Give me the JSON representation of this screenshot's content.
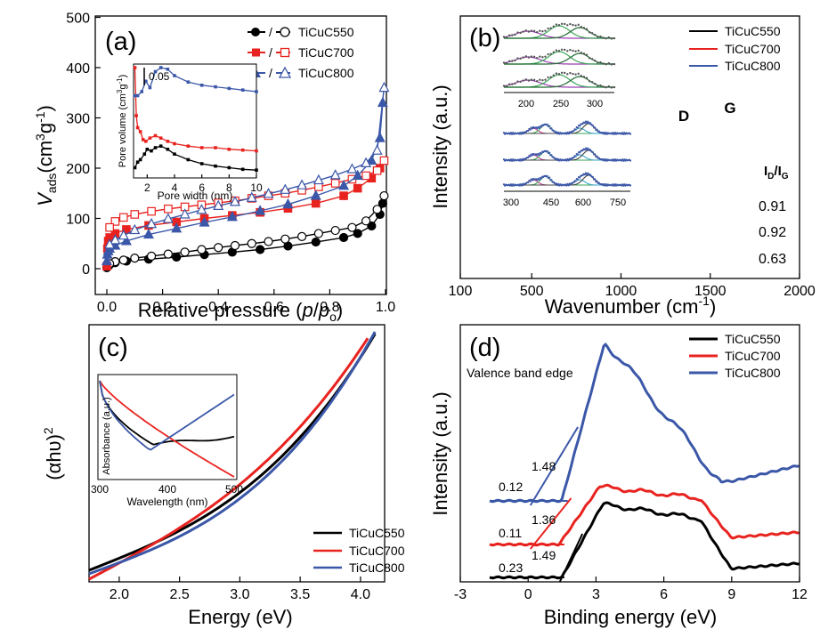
{
  "colors": {
    "s550": "#000000",
    "s700": "#e8231f",
    "s800": "#3b57a8",
    "inset": "#5a5a5a"
  },
  "chart_data": [
    {
      "panel": "(a)",
      "type": "scatter",
      "xlabel_prefix": "Relative pressure (",
      "xlabel_var": "p",
      "xlabel_slash": "/",
      "xlabel_var2": "p",
      "xlabel_sub": "o",
      "xlabel_suffix": ")",
      "ylabel_var": "V",
      "ylabel_sub": "ads",
      "ylabel_unit_a": "(cm",
      "ylabel_sup1": "3",
      "ylabel_unit_b": "g",
      "ylabel_sup2": "-1",
      "ylabel_unit_c": ")",
      "xlim": [
        -0.1,
        1.1
      ],
      "ylim": [
        -20,
        500
      ],
      "xticks": [
        "0.0",
        "0.2",
        "0.4",
        "0.6",
        "0.8",
        "1.0"
      ],
      "yticks": [
        "0",
        "100",
        "200",
        "300",
        "400",
        "500"
      ],
      "legend": [
        "TiCuC550",
        "TiCuC700",
        "TiCuC800"
      ],
      "legend_sep": "/",
      "series": [
        {
          "name": "TiCuC550",
          "color": "s550",
          "adsorption": [
            [
              0.0,
              2
            ],
            [
              0.005,
              5
            ],
            [
              0.01,
              8
            ],
            [
              0.03,
              12
            ],
            [
              0.07,
              15
            ],
            [
              0.15,
              19
            ],
            [
              0.25,
              23
            ],
            [
              0.35,
              28
            ],
            [
              0.45,
              33
            ],
            [
              0.55,
              38
            ],
            [
              0.65,
              45
            ],
            [
              0.75,
              53
            ],
            [
              0.85,
              62
            ],
            [
              0.9,
              70
            ],
            [
              0.95,
              85
            ],
            [
              0.98,
              108
            ],
            [
              0.99,
              130
            ]
          ],
          "desorption": [
            [
              0.995,
              145
            ],
            [
              0.97,
              118
            ],
            [
              0.93,
              95
            ],
            [
              0.88,
              82
            ],
            [
              0.82,
              76
            ],
            [
              0.76,
              70
            ],
            [
              0.7,
              64
            ],
            [
              0.64,
              59
            ],
            [
              0.58,
              54
            ],
            [
              0.52,
              50
            ],
            [
              0.46,
              46
            ],
            [
              0.4,
              42
            ],
            [
              0.34,
              38
            ],
            [
              0.28,
              33
            ],
            [
              0.22,
              29
            ],
            [
              0.16,
              25
            ],
            [
              0.1,
              21
            ],
            [
              0.06,
              17
            ],
            [
              0.03,
              14
            ],
            [
              0.01,
              10
            ]
          ]
        },
        {
          "name": "TiCuC700",
          "color": "s700",
          "adsorption": [
            [
              0.0,
              5
            ],
            [
              0.002,
              40
            ],
            [
              0.005,
              55
            ],
            [
              0.01,
              62
            ],
            [
              0.03,
              70
            ],
            [
              0.07,
              78
            ],
            [
              0.15,
              86
            ],
            [
              0.25,
              93
            ],
            [
              0.35,
              100
            ],
            [
              0.45,
              106
            ],
            [
              0.55,
              112
            ],
            [
              0.65,
              120
            ],
            [
              0.75,
              130
            ],
            [
              0.85,
              145
            ],
            [
              0.9,
              160
            ],
            [
              0.95,
              180
            ],
            [
              0.98,
              200
            ]
          ],
          "desorption": [
            [
              0.995,
              215
            ],
            [
              0.97,
              195
            ],
            [
              0.93,
              185
            ],
            [
              0.88,
              178
            ],
            [
              0.82,
              170
            ],
            [
              0.76,
              163
            ],
            [
              0.7,
              156
            ],
            [
              0.64,
              150
            ],
            [
              0.58,
              145
            ],
            [
              0.52,
              140
            ],
            [
              0.46,
              135
            ],
            [
              0.4,
              131
            ],
            [
              0.34,
              127
            ],
            [
              0.28,
              123
            ],
            [
              0.22,
              119
            ],
            [
              0.16,
              114
            ],
            [
              0.1,
              108
            ],
            [
              0.06,
              102
            ],
            [
              0.03,
              94
            ],
            [
              0.01,
              82
            ]
          ]
        },
        {
          "name": "TiCuC800",
          "color": "s800",
          "adsorption": [
            [
              0.0,
              15
            ],
            [
              0.002,
              28
            ],
            [
              0.005,
              35
            ],
            [
              0.01,
              40
            ],
            [
              0.03,
              46
            ],
            [
              0.07,
              55
            ],
            [
              0.15,
              68
            ],
            [
              0.25,
              80
            ],
            [
              0.35,
              92
            ],
            [
              0.45,
              103
            ],
            [
              0.55,
              115
            ],
            [
              0.65,
              128
            ],
            [
              0.75,
              145
            ],
            [
              0.85,
              165
            ],
            [
              0.9,
              185
            ],
            [
              0.95,
              215
            ],
            [
              0.98,
              260
            ],
            [
              0.99,
              330
            ]
          ],
          "desorption": [
            [
              0.995,
              360
            ],
            [
              0.97,
              235
            ],
            [
              0.93,
              210
            ],
            [
              0.88,
              198
            ],
            [
              0.82,
              186
            ],
            [
              0.76,
              176
            ],
            [
              0.7,
              166
            ],
            [
              0.64,
              157
            ],
            [
              0.58,
              149
            ],
            [
              0.52,
              141
            ],
            [
              0.46,
              133
            ],
            [
              0.4,
              125
            ],
            [
              0.34,
              117
            ],
            [
              0.28,
              108
            ],
            [
              0.22,
              99
            ],
            [
              0.16,
              89
            ],
            [
              0.1,
              77
            ],
            [
              0.06,
              66
            ],
            [
              0.03,
              57
            ],
            [
              0.01,
              48
            ]
          ]
        }
      ],
      "inset": {
        "xlabel": "Pore width (nm)",
        "ylabel": "Pore volume (cm",
        "ylabel_sup": "3",
        "ylabel_end": "g",
        "ylabel_sup2": "-1",
        "ylabel_close": ")",
        "scalebar_label": "0.05",
        "xlim": [
          1,
          10
        ],
        "xticks": [
          "2",
          "4",
          "6",
          "8",
          "10"
        ],
        "series": [
          {
            "name": "TiCuC550",
            "color": "s550",
            "points": [
              [
                1.1,
                0.005
              ],
              [
                1.3,
                0.012
              ],
              [
                1.5,
                0.015
              ],
              [
                1.8,
                0.022
              ],
              [
                2.0,
                0.028
              ],
              [
                2.3,
                0.026
              ],
              [
                2.6,
                0.03
              ],
              [
                3.0,
                0.032
              ],
              [
                3.5,
                0.028
              ],
              [
                4.0,
                0.022
              ],
              [
                5,
                0.015
              ],
              [
                6,
                0.01
              ],
              [
                7,
                0.007
              ],
              [
                8,
                0.005
              ],
              [
                9,
                0.003
              ],
              [
                10,
                0.002
              ]
            ]
          },
          {
            "name": "TiCuC700",
            "color": "s700",
            "points": [
              [
                1.1,
                0.13
              ],
              [
                1.2,
                0.07
              ],
              [
                1.3,
                0.055
              ],
              [
                1.5,
                0.05
              ],
              [
                1.7,
                0.04
              ],
              [
                1.9,
                0.038
              ],
              [
                2.2,
                0.042
              ],
              [
                2.6,
                0.045
              ],
              [
                3.0,
                0.042
              ],
              [
                3.5,
                0.038
              ],
              [
                4,
                0.035
              ],
              [
                5,
                0.032
              ],
              [
                6,
                0.03
              ],
              [
                7,
                0.03
              ],
              [
                8,
                0.028
              ],
              [
                9,
                0.027
              ],
              [
                10,
                0.026
              ]
            ]
          },
          {
            "name": "TiCuC800",
            "color": "s800",
            "points": [
              [
                1.1,
                0.095
              ],
              [
                1.3,
                0.095
              ],
              [
                1.6,
                0.1
              ],
              [
                1.9,
                0.113
              ],
              [
                2.2,
                0.105
              ],
              [
                2.6,
                0.125
              ],
              [
                3.0,
                0.13
              ],
              [
                3.5,
                0.128
              ],
              [
                4.0,
                0.12
              ],
              [
                5,
                0.112
              ],
              [
                6,
                0.108
              ],
              [
                7,
                0.106
              ],
              [
                8,
                0.104
              ],
              [
                9,
                0.102
              ],
              [
                10,
                0.1
              ]
            ]
          }
        ]
      }
    },
    {
      "panel": "(b)",
      "type": "line",
      "xlabel": "Wavenumber (cm",
      "xlabel_sup": "-1",
      "xlabel_close": ")",
      "ylabel": "Intensity (a.u.)",
      "xlim": [
        100,
        2000
      ],
      "xticks": [
        "100",
        "500",
        "1000",
        "1500",
        "2000"
      ],
      "legend": [
        "TiCuC550",
        "TiCuC700",
        "TiCuC800"
      ],
      "annot_D": "D",
      "annot_G": "G",
      "ratio_header_I": "I",
      "ratio_header_D": "D",
      "ratio_header_slash": "/I",
      "ratio_header_G": "G",
      "ratios": [
        "0.91",
        "0.92",
        "0.63"
      ],
      "inset_top_ticks": [
        "200",
        "250",
        "300"
      ],
      "inset_bottom_ticks": [
        "300",
        "450",
        "600",
        "750"
      ]
    },
    {
      "panel": "(c)",
      "type": "line",
      "xlabel": "Energy (eV)",
      "ylabel_main": "(αhυ)",
      "ylabel_sup": "2",
      "xlim": [
        1.75,
        4.2
      ],
      "xticks": [
        "2.0",
        "2.5",
        "3.0",
        "3.5",
        "4.0"
      ],
      "legend": [
        "TiCuC550",
        "TiCuC700",
        "TiCuC800"
      ],
      "inset": {
        "xlabel": "Wavelength (nm)",
        "ylabel": "Absorbance (a.u.)",
        "xlim": [
          300,
          500
        ],
        "xticks": [
          "300",
          "400",
          "500"
        ]
      }
    },
    {
      "panel": "(d)",
      "type": "line",
      "xlabel": "Binding energy (eV)",
      "ylabel": "Intensity (a.u.)",
      "xlim": [
        -3,
        12
      ],
      "xticks": [
        "-3",
        "0",
        "3",
        "6",
        "9",
        "12"
      ],
      "legend": [
        "TiCuC550",
        "TiCuC700",
        "TiCuC800"
      ],
      "annotation": "Valence band edge",
      "edge_labels": {
        "s800": [
          "0.12",
          "1.48"
        ],
        "s700": [
          "0.11",
          "1.36"
        ],
        "s550": [
          "0.23",
          "1.49"
        ]
      }
    }
  ]
}
